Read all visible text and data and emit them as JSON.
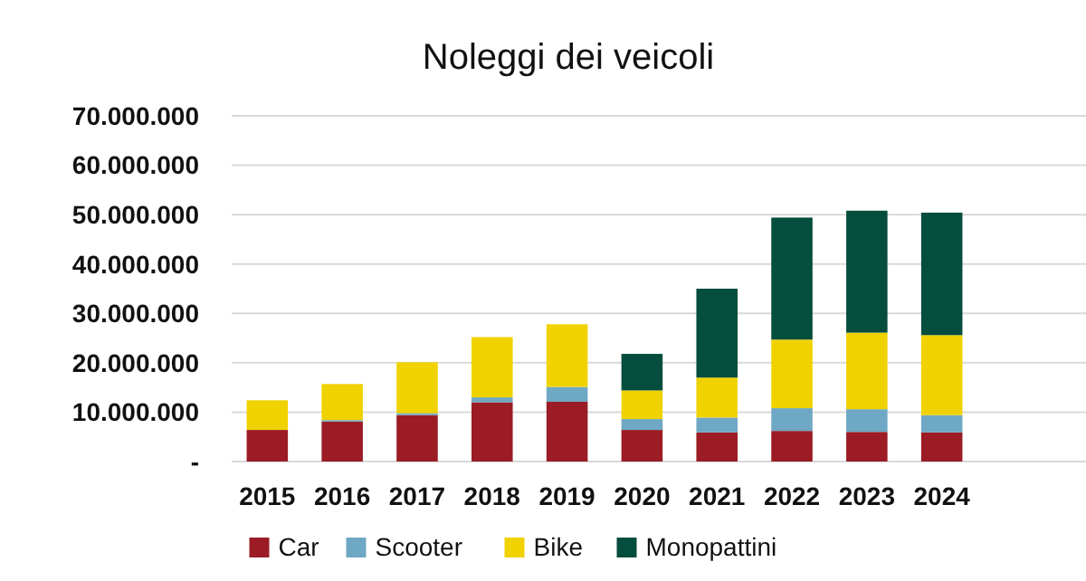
{
  "chart_data": {
    "type": "bar",
    "title": "Noleggi dei veicoli",
    "stacked": true,
    "grid": "y",
    "legend": "bottom",
    "categories": [
      "2015",
      "2016",
      "2017",
      "2018",
      "2019",
      "2020",
      "2021",
      "2022",
      "2023",
      "2024"
    ],
    "ylim": [
      0,
      70000000
    ],
    "yticks": [
      {
        "value": 0,
        "label": "-"
      },
      {
        "value": 10000000,
        "label": "10.000.000"
      },
      {
        "value": 20000000,
        "label": "20.000.000"
      },
      {
        "value": 30000000,
        "label": "30.000.000"
      },
      {
        "value": 40000000,
        "label": "40.000.000"
      },
      {
        "value": 50000000,
        "label": "50.000.000"
      },
      {
        "value": 60000000,
        "label": "60.000.000"
      },
      {
        "value": 70000000,
        "label": "70.000.000"
      }
    ],
    "series": [
      {
        "name": "Car",
        "color": "#9b1c24",
        "values": [
          6400000,
          8100000,
          9400000,
          12000000,
          12100000,
          6400000,
          5900000,
          6200000,
          6000000,
          5900000
        ]
      },
      {
        "name": "Scooter",
        "color": "#6fa8c4",
        "values": [
          null,
          300000,
          400000,
          1000000,
          3000000,
          2200000,
          3000000,
          4600000,
          4600000,
          3500000
        ]
      },
      {
        "name": "Bike",
        "color": "#f0d200",
        "values": [
          6000000,
          7300000,
          10300000,
          12200000,
          12700000,
          5800000,
          8100000,
          13900000,
          15500000,
          16200000
        ]
      },
      {
        "name": "Monopattini",
        "color": "#054d3c",
        "values": [
          0,
          0,
          0,
          0,
          0,
          7400000,
          18000000,
          24700000,
          24700000,
          24800000
        ]
      }
    ]
  }
}
